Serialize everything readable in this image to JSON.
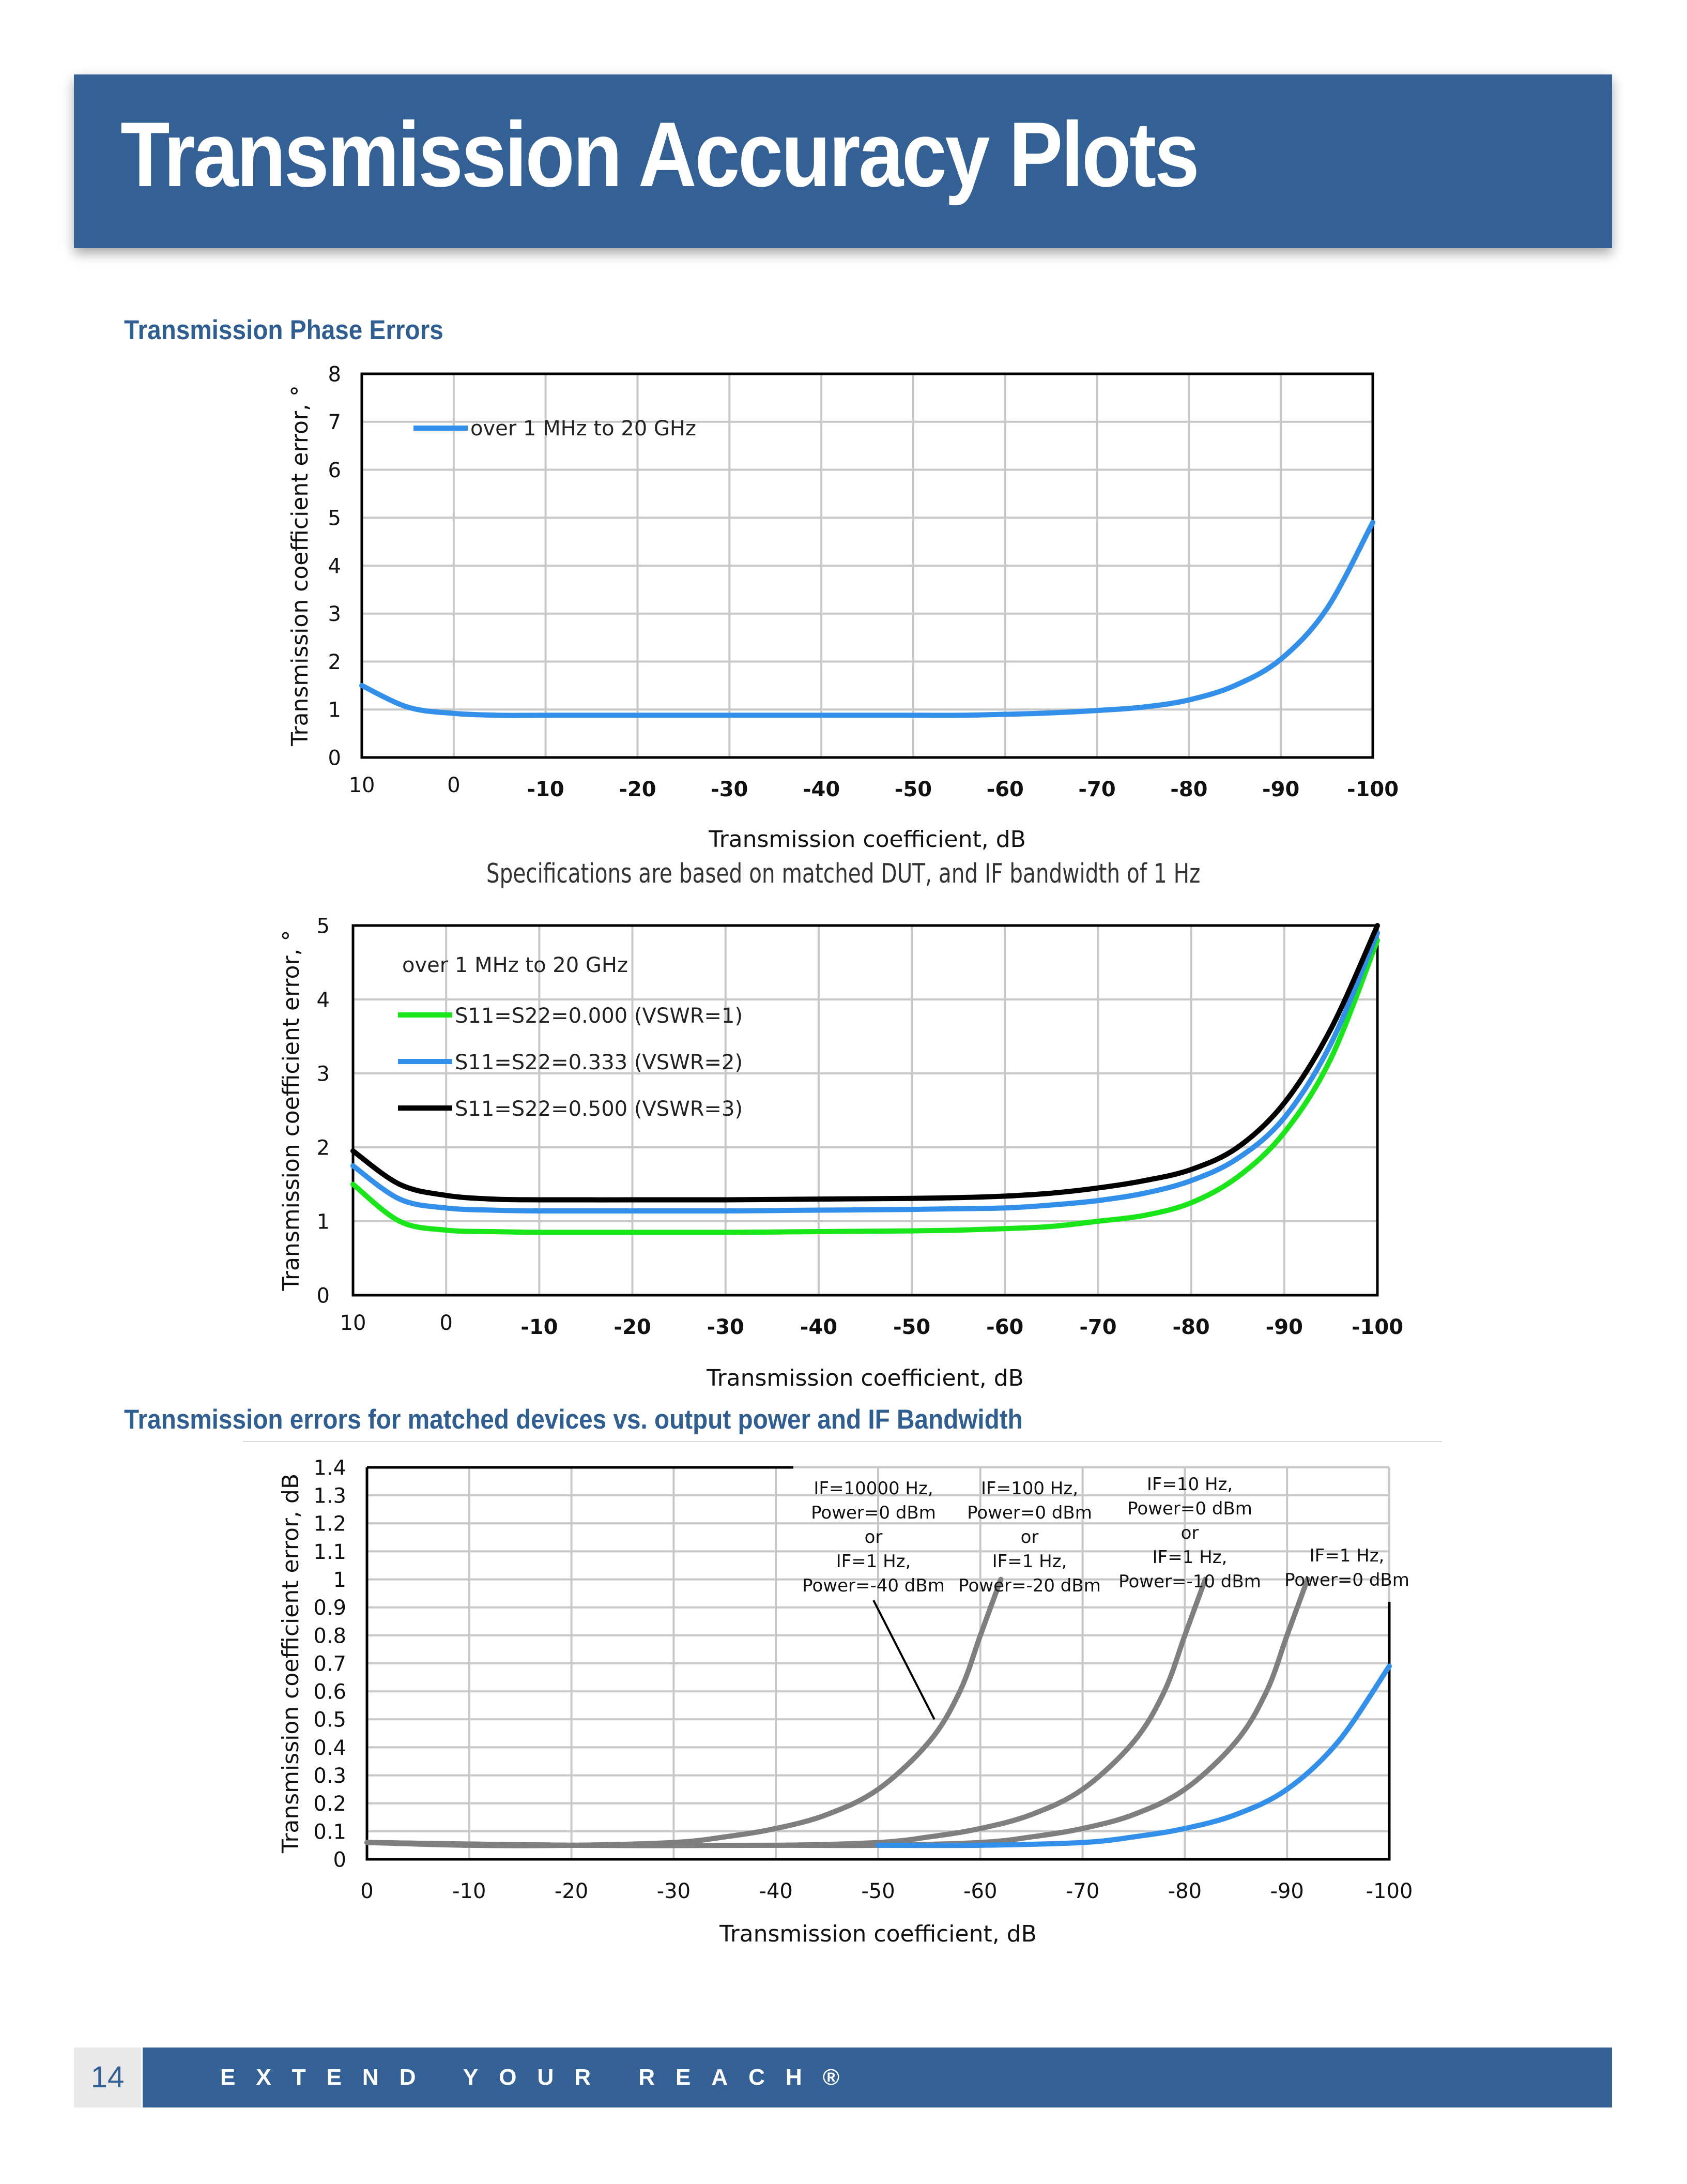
{
  "page": {
    "title": "Transmission Accuracy Plots",
    "section1_heading": "Transmission Phase Errors",
    "spec_note": "Specifications are based on matched DUT, and IF bandwidth of 1 Hz",
    "section2_heading": "Transmission errors for matched devices vs. output power and IF Bandwidth",
    "footer_page_number": "14",
    "footer_tagline": "EXTEND YOUR REACH®"
  },
  "colors": {
    "brand_blue": "#346195",
    "heading_blue": "#2f5e93",
    "series_blue": "#3390ea",
    "series_green": "#19e619",
    "series_black": "#000000",
    "series_gray": "#7f7f7f",
    "grid": "#c8c8c8"
  },
  "chart_data": [
    {
      "type": "line",
      "xlabel": "Transmission coefficient, dB",
      "ylabel": "Transmission coefficient error, °",
      "xlim": [
        10,
        -100
      ],
      "ylim": [
        0,
        8
      ],
      "x_ticks": [
        10,
        0,
        -10,
        -20,
        -30,
        -40,
        -50,
        -60,
        -70,
        -80,
        -90,
        -100
      ],
      "y_ticks": [
        0,
        1,
        2,
        3,
        4,
        5,
        6,
        7,
        8
      ],
      "grid": true,
      "legend_position": "top-left",
      "series": [
        {
          "name": "over 1 MHz to 20 GHz",
          "color": "#3390ea",
          "x": [
            10,
            5,
            0,
            -5,
            -10,
            -20,
            -30,
            -40,
            -50,
            -55,
            -60,
            -65,
            -70,
            -75,
            -80,
            -85,
            -90,
            -95,
            -100
          ],
          "y": [
            1.5,
            1.05,
            0.92,
            0.88,
            0.88,
            0.88,
            0.88,
            0.88,
            0.88,
            0.88,
            0.9,
            0.93,
            0.98,
            1.05,
            1.2,
            1.5,
            2.05,
            3.1,
            4.9
          ]
        }
      ]
    },
    {
      "type": "line",
      "xlabel": "Transmission coefficient, dB",
      "ylabel": "Transmission coefficient error, °",
      "xlim": [
        10,
        -100
      ],
      "ylim": [
        0,
        5
      ],
      "x_ticks": [
        10,
        0,
        -10,
        -20,
        -30,
        -40,
        -50,
        -60,
        -70,
        -80,
        -90,
        -100
      ],
      "y_ticks": [
        0,
        1,
        2,
        3,
        4,
        5
      ],
      "grid": true,
      "legend_position": "top-left",
      "legend_title": "over 1 MHz to 20 GHz",
      "series": [
        {
          "name": "S11=S22=0.000 (VSWR=1)",
          "color": "#19e619",
          "x": [
            10,
            5,
            0,
            -5,
            -10,
            -20,
            -30,
            -40,
            -50,
            -55,
            -60,
            -65,
            -70,
            -75,
            -80,
            -85,
            -90,
            -95,
            -100
          ],
          "y": [
            1.5,
            1.0,
            0.88,
            0.86,
            0.85,
            0.85,
            0.85,
            0.86,
            0.87,
            0.88,
            0.9,
            0.93,
            1.0,
            1.08,
            1.25,
            1.6,
            2.2,
            3.2,
            4.8
          ]
        },
        {
          "name": "S11=S22=0.333 (VSWR=2)",
          "color": "#3390ea",
          "x": [
            10,
            5,
            0,
            -5,
            -10,
            -20,
            -30,
            -40,
            -50,
            -55,
            -60,
            -65,
            -70,
            -75,
            -80,
            -85,
            -90,
            -95,
            -100
          ],
          "y": [
            1.75,
            1.3,
            1.18,
            1.15,
            1.14,
            1.14,
            1.14,
            1.15,
            1.16,
            1.17,
            1.18,
            1.22,
            1.28,
            1.38,
            1.55,
            1.85,
            2.4,
            3.4,
            4.9
          ]
        },
        {
          "name": "S11=S22=0.500 (VSWR=3)",
          "color": "#000000",
          "x": [
            10,
            5,
            0,
            -5,
            -10,
            -20,
            -30,
            -40,
            -50,
            -55,
            -60,
            -65,
            -70,
            -75,
            -80,
            -85,
            -90,
            -95,
            -100
          ],
          "y": [
            1.95,
            1.5,
            1.35,
            1.3,
            1.29,
            1.29,
            1.29,
            1.3,
            1.31,
            1.32,
            1.34,
            1.38,
            1.45,
            1.55,
            1.7,
            2.0,
            2.6,
            3.6,
            5.0
          ]
        }
      ]
    },
    {
      "type": "line",
      "xlabel": "Transmission coefficient, dB",
      "ylabel": "Transmission coefficient error, dB",
      "xlim": [
        0,
        -100
      ],
      "ylim": [
        0,
        1.4
      ],
      "x_ticks": [
        0,
        -10,
        -20,
        -30,
        -40,
        -50,
        -60,
        -70,
        -80,
        -90,
        -100
      ],
      "y_ticks": [
        0,
        0.1,
        0.2,
        0.3,
        0.4,
        0.5,
        0.6,
        0.7,
        0.8,
        0.9,
        1,
        1.1,
        1.2,
        1.3,
        1.4
      ],
      "grid": true,
      "annotations": [
        {
          "lines": [
            "IF=10000 Hz,",
            "Power=0 dBm",
            "or",
            "IF=1 Hz,",
            "Power=-40 dBm"
          ],
          "points_to": [
            -55.5,
            0.5
          ]
        },
        {
          "lines": [
            "IF=100 Hz,",
            "Power=0 dBm",
            "or",
            "IF=1 Hz,",
            "Power=-20 dBm"
          ]
        },
        {
          "lines": [
            "IF=10 Hz,",
            "Power=0 dBm",
            "or",
            "IF=1 Hz,",
            "Power=-10 dBm"
          ]
        },
        {
          "lines": [
            "IF=1 Hz,",
            "Power=0 dBm"
          ]
        }
      ],
      "series": [
        {
          "color": "#7f7f7f",
          "x": [
            0,
            -10,
            -20,
            -30,
            -35,
            -40,
            -45,
            -50,
            -55,
            -58,
            -60,
            -62
          ],
          "y": [
            0.06,
            0.05,
            0.05,
            0.06,
            0.08,
            0.11,
            0.16,
            0.25,
            0.42,
            0.6,
            0.8,
            1.0
          ]
        },
        {
          "color": "#7f7f7f",
          "x": [
            0,
            -20,
            -40,
            -50,
            -55,
            -60,
            -65,
            -70,
            -75,
            -78,
            -80,
            -82
          ],
          "y": [
            0.06,
            0.05,
            0.05,
            0.06,
            0.08,
            0.11,
            0.16,
            0.25,
            0.42,
            0.6,
            0.8,
            1.0
          ]
        },
        {
          "color": "#7f7f7f",
          "x": [
            0,
            -20,
            -40,
            -50,
            -60,
            -65,
            -70,
            -75,
            -80,
            -85,
            -88,
            -90,
            -92
          ],
          "y": [
            0.06,
            0.05,
            0.05,
            0.05,
            0.06,
            0.08,
            0.11,
            0.16,
            0.25,
            0.42,
            0.6,
            0.8,
            1.0
          ]
        },
        {
          "color": "#3390ea",
          "x": [
            -50,
            -60,
            -70,
            -75,
            -80,
            -85,
            -90,
            -95,
            -100
          ],
          "y": [
            0.05,
            0.05,
            0.06,
            0.08,
            0.11,
            0.16,
            0.25,
            0.42,
            0.69
          ]
        }
      ]
    }
  ]
}
